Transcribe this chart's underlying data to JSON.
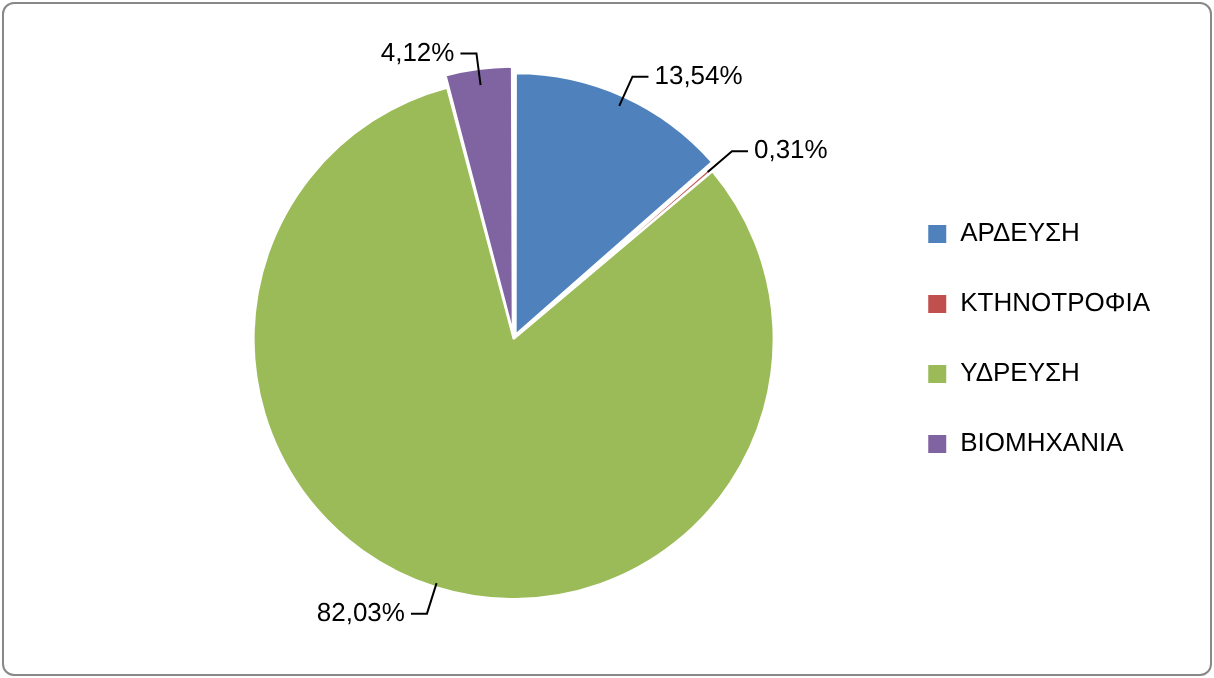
{
  "chart_data": {
    "type": "pie",
    "categories": [
      "ΑΡΔΕΥΣΗ",
      "ΚΤΗΝΟΤΡΟΦΙΑ",
      "ΥΔΡΕΥΣΗ",
      "ΒΙΟΜΗΧΑΝΙΑ"
    ],
    "values": [
      13.54,
      0.31,
      82.03,
      4.12
    ],
    "colors": [
      "#4f81bd",
      "#c0504d",
      "#9bbb59",
      "#8064a2"
    ],
    "value_labels": [
      "13,54%",
      "0,31%",
      "82,03%",
      "4,12%"
    ],
    "legend": "right"
  }
}
